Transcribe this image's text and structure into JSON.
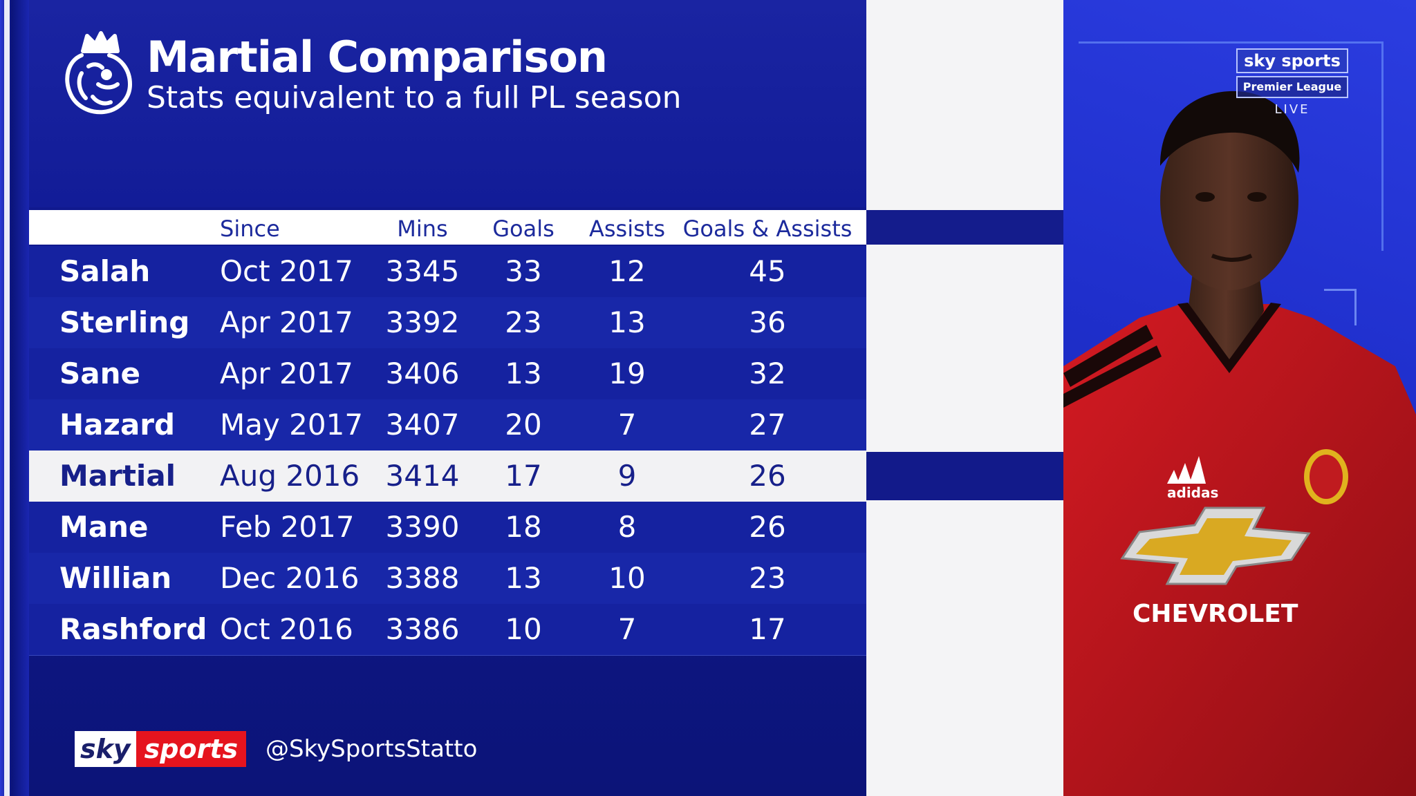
{
  "header": {
    "title": "Martial Comparison",
    "subtitle": "Stats equivalent to a full PL season"
  },
  "table": {
    "columns": [
      "",
      "Since",
      "Mins",
      "Goals",
      "Assists",
      "Goals & Assists"
    ],
    "rows": [
      {
        "name": "Salah",
        "since": "Oct 2017",
        "mins": "3345",
        "goals": "33",
        "assists": "12",
        "ga": "45"
      },
      {
        "name": "Sterling",
        "since": "Apr 2017",
        "mins": "3392",
        "goals": "23",
        "assists": "13",
        "ga": "36"
      },
      {
        "name": "Sane",
        "since": "Apr 2017",
        "mins": "3406",
        "goals": "13",
        "assists": "19",
        "ga": "32"
      },
      {
        "name": "Hazard",
        "since": "May 2017",
        "mins": "3407",
        "goals": "20",
        "assists": "7",
        "ga": "27"
      },
      {
        "name": "Martial",
        "since": "Aug 2016",
        "mins": "3414",
        "goals": "17",
        "assists": "9",
        "ga": "26"
      },
      {
        "name": "Mane",
        "since": "Feb 2017",
        "mins": "3390",
        "goals": "18",
        "assists": "8",
        "ga": "26"
      },
      {
        "name": "Willian",
        "since": "Dec 2016",
        "mins": "3388",
        "goals": "13",
        "assists": "10",
        "ga": "23"
      },
      {
        "name": "Rashford",
        "since": "Oct 2016",
        "mins": "3386",
        "goals": "10",
        "assists": "7",
        "ga": "17"
      }
    ],
    "highlighted_row": "Martial"
  },
  "footer": {
    "logo_sky": "sky",
    "logo_sports": "sports",
    "handle": "@SkySportsStatto"
  },
  "bug": {
    "brand": "sky sports",
    "league": "Premier League",
    "live": "LIVE"
  },
  "player_shirt": {
    "sponsor": "CHEVROLET",
    "maker": "adidas"
  },
  "colors": {
    "panel_blue": "#121b94",
    "highlight_row": "#f2f2f4",
    "accent_red": "#e5141e",
    "shirt_red": "#c4161c"
  },
  "icons": {
    "league_logo": "premier-league-lion-icon"
  }
}
